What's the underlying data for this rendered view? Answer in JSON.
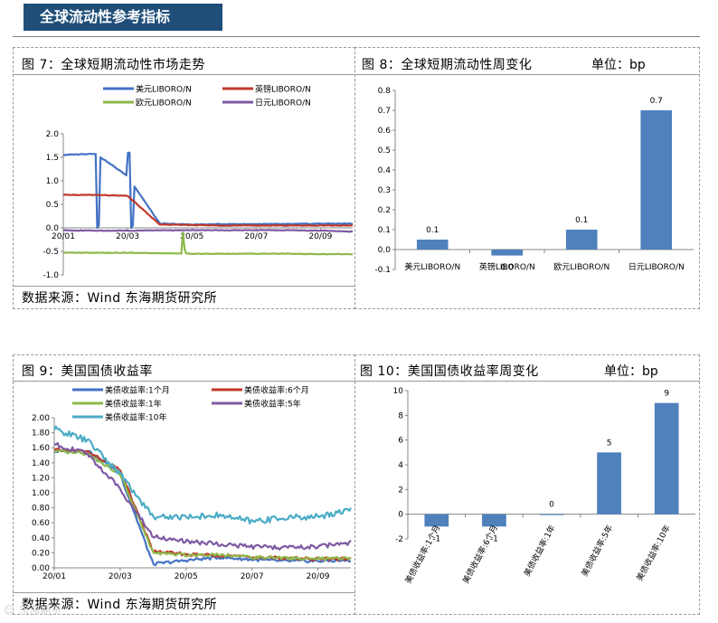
{
  "header": {
    "title": "全球流动性参考指标"
  },
  "panels": {
    "fig7": {
      "title": "图 7：全球短期流动性市场走势",
      "source": "数据来源：Wind   东海期货研究所"
    },
    "fig8": {
      "title": "图 8：全球短期流动性周变化",
      "unit": "单位：bp"
    },
    "fig9": {
      "title": "图 9：美国国债收益率",
      "source": "数据来源：Wind   东海期货研究所"
    },
    "fig10": {
      "title": "图 10：美国国债收益率周变化",
      "unit": "单位：bp"
    }
  },
  "watermark": "☺ 东海期货",
  "colors": {
    "blue": "#4472c4",
    "red": "#c0392b",
    "green": "#8db94a",
    "purple": "#7f5aa2",
    "teal": "#4bacc6",
    "bar": "#4f81bd",
    "banner": "#1f4e79"
  },
  "chart_data": [
    {
      "id": "fig7",
      "type": "line",
      "x": [
        "20/01",
        "20/02",
        "20/03",
        "20/04",
        "20/05",
        "20/06",
        "20/07",
        "20/08",
        "20/09",
        "20/10"
      ],
      "xticks": [
        "20/01",
        "20/03",
        "20/05",
        "20/07",
        "20/09"
      ],
      "ylim": [
        -1.0,
        2.0
      ],
      "yticks": [
        "2.0",
        "1.5",
        "1.0",
        "0.5",
        "0.0",
        "-0.5",
        "-1.0"
      ],
      "series": [
        {
          "name": "美元LIBORO/N",
          "color": "#4472c4",
          "values": [
            1.55,
            1.58,
            1.1,
            0.09,
            0.07,
            0.08,
            0.08,
            0.08,
            0.09,
            0.09
          ]
        },
        {
          "name": "英镑LIBORO/N",
          "color": "#c0392b",
          "values": [
            0.7,
            0.7,
            0.68,
            0.07,
            0.06,
            0.05,
            0.05,
            0.05,
            0.05,
            0.05
          ]
        },
        {
          "name": "欧元LIBORO/N",
          "color": "#8db94a",
          "values": [
            -0.53,
            -0.53,
            -0.53,
            -0.54,
            -0.55,
            -0.55,
            -0.55,
            -0.55,
            -0.56,
            -0.56
          ]
        },
        {
          "name": "日元LIBORO/N",
          "color": "#7f5aa2",
          "values": [
            -0.05,
            -0.06,
            -0.06,
            -0.05,
            -0.05,
            -0.05,
            -0.05,
            -0.05,
            -0.06,
            -0.08
          ]
        }
      ]
    },
    {
      "id": "fig8",
      "type": "bar",
      "categories": [
        "美元LIBORO/N",
        "英镑LIBORO/N",
        "欧元LIBORO/N",
        "日元LIBORO/N"
      ],
      "values": [
        0.05,
        -0.03,
        0.1,
        0.7
      ],
      "labels": [
        "0.1",
        "0.0",
        "0.1",
        "0.7"
      ],
      "ylim": [
        -0.1,
        0.8
      ],
      "yticks": [
        "0.8",
        "0.7",
        "0.6",
        "0.5",
        "0.4",
        "0.3",
        "0.2",
        "0.1",
        "0.0",
        "-0.1"
      ]
    },
    {
      "id": "fig9",
      "type": "line",
      "x": [
        "20/01",
        "20/02",
        "20/03",
        "20/04",
        "20/05",
        "20/06",
        "20/07",
        "20/08",
        "20/09",
        "20/10"
      ],
      "xticks": [
        "20/01",
        "20/03",
        "20/05",
        "20/07",
        "20/09"
      ],
      "ylim": [
        0.0,
        2.0
      ],
      "yticks": [
        "2.00",
        "1.80",
        "1.60",
        "1.40",
        "1.20",
        "1.00",
        "0.80",
        "0.60",
        "0.40",
        "0.20",
        "0.00"
      ],
      "series": [
        {
          "name": "美债收益率:1个月",
          "color": "#4472c4",
          "values": [
            1.55,
            1.57,
            1.25,
            0.05,
            0.1,
            0.14,
            0.11,
            0.09,
            0.09,
            0.1
          ]
        },
        {
          "name": "美债收益率:6个月",
          "color": "#c0392b",
          "values": [
            1.57,
            1.55,
            1.3,
            0.22,
            0.18,
            0.17,
            0.14,
            0.13,
            0.12,
            0.12
          ]
        },
        {
          "name": "美债收益率:1年",
          "color": "#8db94a",
          "values": [
            1.55,
            1.52,
            1.25,
            0.2,
            0.17,
            0.18,
            0.14,
            0.13,
            0.12,
            0.13
          ]
        },
        {
          "name": "美债收益率:5年",
          "color": "#7f5aa2",
          "values": [
            1.65,
            1.52,
            1.05,
            0.42,
            0.35,
            0.32,
            0.28,
            0.27,
            0.28,
            0.34
          ]
        },
        {
          "name": "美债收益率:10年",
          "color": "#4bacc6",
          "values": [
            1.85,
            1.7,
            1.25,
            0.68,
            0.68,
            0.7,
            0.62,
            0.67,
            0.68,
            0.78
          ]
        }
      ]
    },
    {
      "id": "fig10",
      "type": "bar",
      "categories": [
        "美债收益率:1个月",
        "美债收益率:6个月",
        "美债收益率:1年",
        "美债收益率:5年",
        "美债收益率:10年"
      ],
      "values": [
        -1,
        -1,
        0,
        5,
        9
      ],
      "labels": [
        "-1",
        "-1",
        "0",
        "5",
        "9"
      ],
      "ylim": [
        -2,
        10
      ],
      "yticks": [
        "10",
        "8",
        "6",
        "4",
        "2",
        "0",
        "-2"
      ]
    }
  ]
}
